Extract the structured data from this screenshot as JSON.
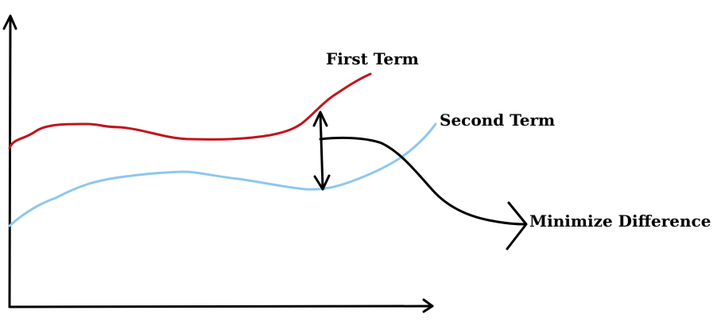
{
  "labels": {
    "first_term": "First Term",
    "second_term": "Second Term",
    "minimize_difference": "Minimize Difference"
  },
  "colors": {
    "first_term": "#c0141c",
    "second_term": "#8dc7ee",
    "ink": "#000000"
  }
}
